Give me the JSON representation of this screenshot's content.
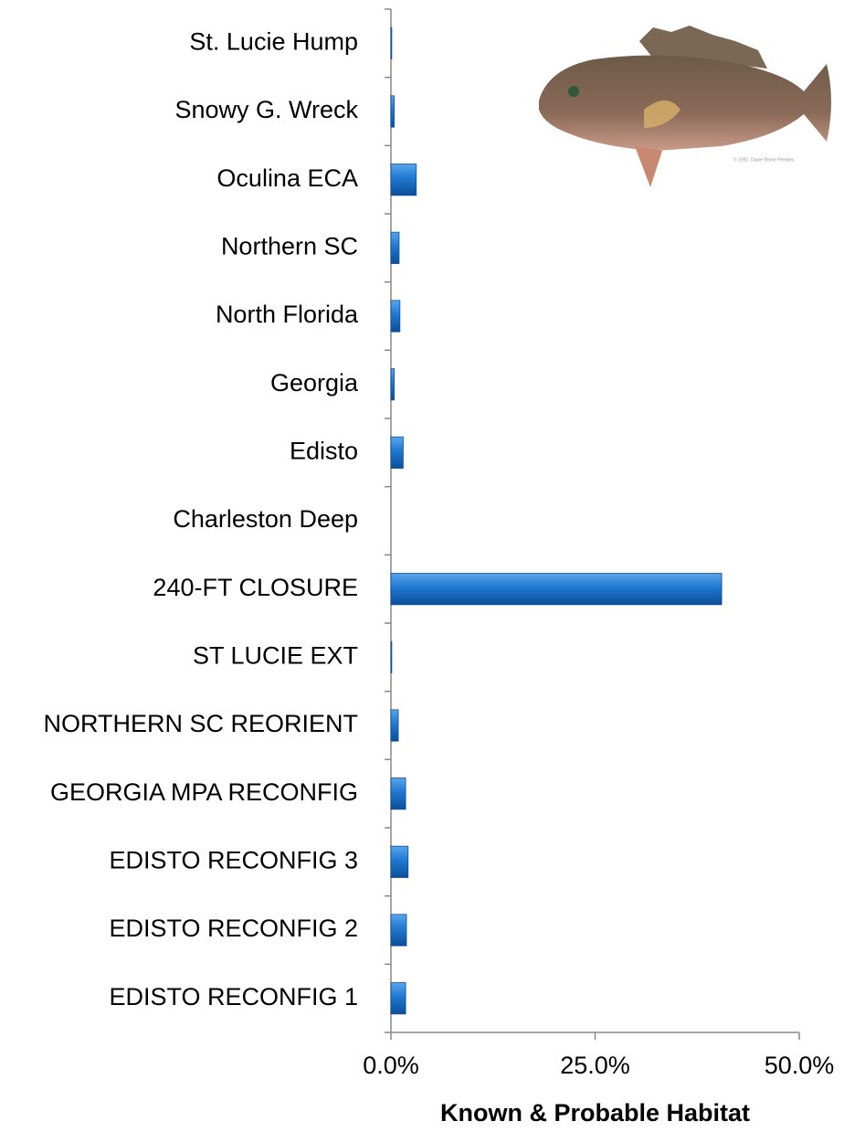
{
  "chart_data": {
    "type": "barh",
    "categories": [
      "St. Lucie Hump",
      "Snowy G. Wreck",
      "Oculina ECA",
      "Northern SC",
      "North Florida",
      "Georgia",
      "Edisto",
      "Charleston Deep",
      "240-FT CLOSURE",
      "ST LUCIE EXT",
      "NORTHERN SC REORIENT",
      "GEORGIA MPA RECONFIG",
      "EDISTO RECONFIG 3",
      "EDISTO RECONFIG 2",
      "EDISTO RECONFIG 1"
    ],
    "values": [
      0.1,
      0.4,
      3.1,
      1.0,
      1.1,
      0.4,
      1.5,
      0,
      40.5,
      0.1,
      0.9,
      1.8,
      2.1,
      1.9,
      1.8
    ],
    "color": "#1f78d1",
    "xlabel": "Known & Probable Habitat",
    "xlim": [
      0,
      50
    ],
    "xticks": [
      {
        "value": 0,
        "label": "0.0%"
      },
      {
        "value": 25,
        "label": "25.0%"
      },
      {
        "value": 50,
        "label": "50.0%"
      }
    ]
  },
  "image_credit": "© 1992, Diane Rome Peebles"
}
